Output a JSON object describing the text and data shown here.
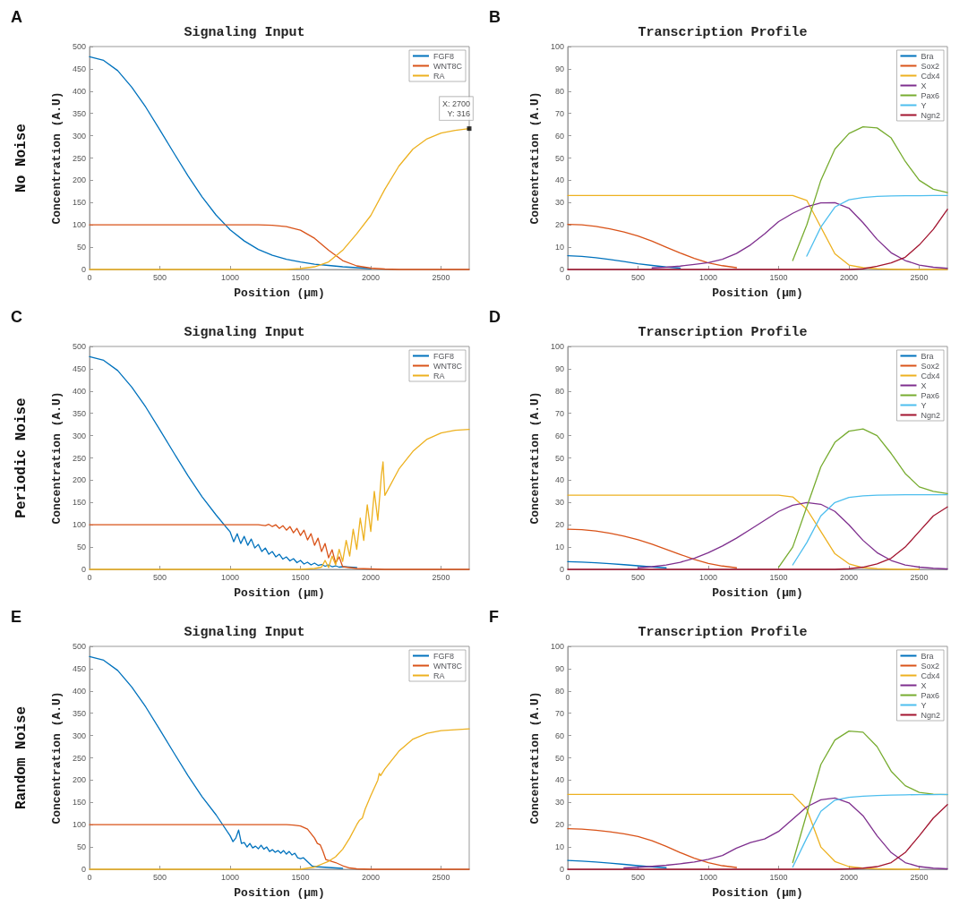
{
  "chart_data": [
    {
      "type": "line",
      "title": "Signaling Input",
      "xlabel": "Position (µm)",
      "ylabel": "Concentration (A.U)",
      "annotations": [
        "A",
        "No Noise",
        {
          "text": "X: 2700\nY: 316",
          "x": 2700,
          "y": 316
        }
      ],
      "xlim": [
        0,
        2700
      ],
      "xticks": [
        0,
        500,
        1000,
        1500,
        2000,
        2500
      ],
      "ylim": [
        0,
        500
      ],
      "yticks": [
        0,
        50,
        100,
        150,
        200,
        250,
        300,
        350,
        400,
        450,
        500
      ],
      "legend": "top right",
      "x": [
        0,
        100,
        200,
        300,
        400,
        500,
        600,
        700,
        800,
        900,
        1000,
        1100,
        1200,
        1300,
        1400,
        1500,
        1600,
        1700,
        1800,
        1900,
        2000,
        2100,
        2200,
        2300,
        2400,
        2500,
        2600,
        2700
      ],
      "series": [
        {
          "name": "FGF8",
          "color": "#0072bd",
          "values": [
            477,
            469,
            446,
            409,
            364,
            313,
            261,
            210,
            163,
            122,
            89,
            64,
            45,
            32,
            23,
            17,
            12,
            9,
            6,
            4,
            2,
            null,
            null,
            null,
            null,
            null,
            null,
            null
          ]
        },
        {
          "name": "WNT8C",
          "color": "#d95319",
          "values": [
            100,
            100,
            100,
            100,
            100,
            100,
            100,
            100,
            100,
            100,
            100,
            100,
            100,
            99,
            96,
            88,
            70,
            43,
            20,
            8,
            3,
            1,
            0,
            0,
            0,
            0,
            0,
            0
          ]
        },
        {
          "name": "RA",
          "color": "#edb120",
          "values": [
            0,
            0,
            0,
            0,
            0,
            0,
            0,
            0,
            0,
            0,
            0,
            0,
            0,
            0,
            0,
            2,
            6,
            17,
            43,
            80,
            121,
            180,
            232,
            270,
            293,
            306,
            312,
            316
          ]
        }
      ]
    },
    {
      "type": "line",
      "title": "Transcription Profile",
      "xlabel": "Position (µm)",
      "ylabel": "Concentration (A.U)",
      "annotations": [
        "B"
      ],
      "xlim": [
        0,
        2700
      ],
      "xticks": [
        0,
        500,
        1000,
        1500,
        2000,
        2500
      ],
      "ylim": [
        0,
        100
      ],
      "yticks": [
        0,
        10,
        20,
        30,
        40,
        50,
        60,
        70,
        80,
        90,
        100
      ],
      "legend": "top right",
      "x": [
        0,
        100,
        200,
        300,
        400,
        500,
        600,
        700,
        800,
        900,
        1000,
        1100,
        1200,
        1300,
        1400,
        1500,
        1600,
        1700,
        1800,
        1900,
        2000,
        2100,
        2200,
        2300,
        2400,
        2500,
        2600,
        2700
      ],
      "series": [
        {
          "name": "Bra",
          "color": "#0072bd",
          "values": [
            6.2,
            5.9,
            5.3,
            4.5,
            3.6,
            2.6,
            1.8,
            1.1,
            0.6,
            null,
            null,
            null,
            null,
            null,
            null,
            null,
            null,
            null,
            null,
            null,
            null,
            null,
            null,
            null,
            null,
            null,
            null,
            null
          ]
        },
        {
          "name": "Sox2",
          "color": "#d95319",
          "values": [
            20.2,
            20,
            19.3,
            18.2,
            16.8,
            15,
            12.7,
            10,
            7.4,
            5,
            3,
            1.7,
            0.8,
            null,
            null,
            null,
            null,
            null,
            null,
            null,
            null,
            null,
            null,
            null,
            null,
            null,
            null,
            null
          ]
        },
        {
          "name": "Cdx4",
          "color": "#edb120",
          "values": [
            33.2,
            33.2,
            33.2,
            33.2,
            33.2,
            33.2,
            33.2,
            33.2,
            33.2,
            33.2,
            33.2,
            33.2,
            33.2,
            33.2,
            33.2,
            33.2,
            33.2,
            31,
            19,
            7,
            2,
            0.8,
            0.3,
            0.1,
            0,
            0,
            0,
            0
          ]
        },
        {
          "name": "X",
          "color": "#7e2f8e",
          "values": [
            null,
            null,
            null,
            null,
            null,
            null,
            0.7,
            1,
            1.5,
            2.3,
            3.1,
            4.6,
            7.2,
            11,
            16,
            21.5,
            25.2,
            28.2,
            29.9,
            30,
            27.5,
            21,
            13.5,
            7.5,
            4,
            2,
            1,
            0.5
          ]
        },
        {
          "name": "Pax6",
          "color": "#77ac30",
          "values": [
            null,
            null,
            null,
            null,
            null,
            null,
            null,
            null,
            null,
            null,
            null,
            null,
            null,
            null,
            null,
            null,
            4,
            20,
            40,
            54,
            61,
            64,
            63.5,
            59,
            48.5,
            40,
            36,
            34.5
          ]
        },
        {
          "name": "Y",
          "color": "#4dbeee",
          "values": [
            null,
            null,
            null,
            null,
            null,
            null,
            null,
            null,
            null,
            null,
            null,
            null,
            null,
            null,
            null,
            null,
            null,
            6,
            19,
            28,
            31.3,
            32.3,
            32.8,
            33,
            33.1,
            33.1,
            33.2,
            33.2
          ]
        },
        {
          "name": "Ngn2",
          "color": "#a2142f",
          "values": [
            0,
            0,
            0,
            0,
            0,
            0,
            0,
            0,
            0,
            0,
            0,
            0,
            0,
            0,
            0,
            0,
            0,
            0,
            0,
            0,
            0,
            0.3,
            1.5,
            3,
            5.5,
            11,
            18,
            27
          ]
        }
      ]
    },
    {
      "type": "line",
      "title": "Signaling Input",
      "xlabel": "Position (µm)",
      "ylabel": "Concentration (A.U)",
      "annotations": [
        "C",
        "Periodic Noise"
      ],
      "xlim": [
        0,
        2700
      ],
      "xticks": [
        0,
        500,
        1000,
        1500,
        2000,
        2500
      ],
      "ylim": [
        0,
        500
      ],
      "yticks": [
        0,
        50,
        100,
        150,
        200,
        250,
        300,
        350,
        400,
        450,
        500
      ],
      "legend": "top right",
      "series": [
        {
          "name": "FGF8",
          "color": "#0072bd",
          "x": [
            0,
            100,
            200,
            300,
            400,
            500,
            600,
            700,
            800,
            900,
            1000,
            1025,
            1050,
            1075,
            1100,
            1125,
            1150,
            1175,
            1200,
            1225,
            1250,
            1275,
            1300,
            1325,
            1350,
            1375,
            1400,
            1425,
            1450,
            1475,
            1500,
            1525,
            1550,
            1575,
            1600,
            1625,
            1650,
            1675,
            1700,
            1725,
            1750,
            1775,
            1800,
            1850,
            1900
          ],
          "values": [
            477,
            469,
            446,
            409,
            364,
            313,
            261,
            210,
            163,
            122,
            84,
            62,
            80,
            58,
            74,
            54,
            68,
            48,
            56,
            40,
            48,
            34,
            40,
            28,
            34,
            23,
            28,
            19,
            24,
            15,
            20,
            12,
            16,
            10,
            14,
            9,
            11,
            7,
            10,
            6,
            8,
            5,
            6,
            5,
            4
          ]
        },
        {
          "name": "WNT8C",
          "color": "#d95319",
          "x": [
            0,
            100,
            200,
            300,
            400,
            500,
            600,
            700,
            800,
            900,
            1000,
            1100,
            1200,
            1250,
            1275,
            1300,
            1325,
            1350,
            1375,
            1400,
            1425,
            1450,
            1475,
            1500,
            1525,
            1550,
            1575,
            1600,
            1625,
            1650,
            1675,
            1700,
            1725,
            1750,
            1775,
            1800,
            1850,
            1900,
            2000,
            2100,
            2200,
            2300,
            2400,
            2500,
            2600,
            2700
          ],
          "values": [
            100,
            100,
            100,
            100,
            100,
            100,
            100,
            100,
            100,
            100,
            100,
            100,
            100,
            98,
            101,
            96,
            100,
            92,
            98,
            88,
            96,
            82,
            92,
            76,
            88,
            66,
            80,
            54,
            70,
            40,
            58,
            26,
            44,
            14,
            28,
            6,
            4,
            2,
            1,
            0,
            0,
            0,
            0,
            0,
            0,
            0
          ]
        },
        {
          "name": "RA",
          "color": "#edb120",
          "x": [
            0,
            100,
            200,
            300,
            400,
            500,
            600,
            700,
            800,
            900,
            1000,
            1100,
            1200,
            1300,
            1400,
            1500,
            1600,
            1650,
            1675,
            1700,
            1725,
            1750,
            1775,
            1800,
            1825,
            1850,
            1875,
            1900,
            1925,
            1950,
            1975,
            2000,
            2025,
            2050,
            2075,
            2087,
            2100,
            2200,
            2300,
            2400,
            2500,
            2600,
            2700
          ],
          "values": [
            0,
            0,
            0,
            0,
            0,
            0,
            0,
            0,
            0,
            0,
            0,
            0,
            0,
            0,
            0,
            0,
            2,
            5,
            20,
            4,
            30,
            10,
            45,
            18,
            65,
            30,
            90,
            45,
            115,
            65,
            145,
            85,
            175,
            110,
            210,
            241,
            166,
            225,
            265,
            292,
            306,
            312,
            314
          ]
        }
      ]
    },
    {
      "type": "line",
      "title": "Transcription Profile",
      "xlabel": "Position (µm)",
      "ylabel": "Concentration (A.U)",
      "annotations": [
        "D"
      ],
      "xlim": [
        0,
        2700
      ],
      "xticks": [
        0,
        500,
        1000,
        1500,
        2000,
        2500
      ],
      "ylim": [
        0,
        100
      ],
      "yticks": [
        0,
        10,
        20,
        30,
        40,
        50,
        60,
        70,
        80,
        90,
        100
      ],
      "legend": "top right",
      "x": [
        0,
        100,
        200,
        300,
        400,
        500,
        600,
        700,
        800,
        900,
        1000,
        1100,
        1200,
        1300,
        1400,
        1500,
        1600,
        1700,
        1800,
        1900,
        2000,
        2100,
        2200,
        2300,
        2400,
        2500,
        2600,
        2700
      ],
      "series": [
        {
          "name": "Bra",
          "color": "#0072bd",
          "values": [
            3.5,
            3.3,
            3,
            2.6,
            2.1,
            1.6,
            1.1,
            0.7,
            null,
            null,
            null,
            null,
            null,
            null,
            null,
            null,
            null,
            null,
            null,
            null,
            null,
            null,
            null,
            null,
            null,
            null,
            null,
            null
          ]
        },
        {
          "name": "Sox2",
          "color": "#d95319",
          "values": [
            18,
            17.8,
            17.2,
            16.2,
            14.9,
            13.3,
            11.3,
            9,
            6.7,
            4.5,
            2.7,
            1.5,
            0.7,
            null,
            null,
            null,
            null,
            null,
            null,
            null,
            null,
            null,
            null,
            null,
            null,
            null,
            null,
            null
          ]
        },
        {
          "name": "Cdx4",
          "color": "#edb120",
          "values": [
            33.3,
            33.3,
            33.3,
            33.3,
            33.3,
            33.3,
            33.3,
            33.3,
            33.3,
            33.3,
            33.3,
            33.3,
            33.3,
            33.3,
            33.3,
            33.3,
            32.5,
            27,
            17,
            7,
            2.5,
            0.8,
            0.3,
            0.1,
            0,
            0,
            null,
            null
          ]
        },
        {
          "name": "X",
          "color": "#7e2f8e",
          "values": [
            null,
            null,
            null,
            null,
            null,
            0.7,
            1.2,
            2,
            3.2,
            5,
            7.5,
            10.5,
            14,
            18,
            22,
            26,
            28.8,
            30,
            29.2,
            26,
            20,
            13,
            7.5,
            4,
            2,
            1,
            0.5,
            0.2
          ]
        },
        {
          "name": "Pax6",
          "color": "#77ac30",
          "values": [
            null,
            null,
            null,
            null,
            null,
            null,
            null,
            null,
            null,
            null,
            null,
            null,
            null,
            null,
            null,
            1,
            10,
            28,
            46,
            57,
            62,
            63,
            60,
            52,
            43,
            37,
            35,
            34
          ]
        },
        {
          "name": "Y",
          "color": "#4dbeee",
          "values": [
            null,
            null,
            null,
            null,
            null,
            null,
            null,
            null,
            null,
            null,
            null,
            null,
            null,
            null,
            null,
            null,
            2,
            12,
            24,
            30,
            32.3,
            33,
            33.3,
            33.4,
            33.5,
            33.5,
            33.5,
            33.5
          ]
        },
        {
          "name": "Ngn2",
          "color": "#a2142f",
          "values": [
            0,
            0,
            0,
            0,
            0,
            0,
            0,
            0,
            0,
            0,
            0,
            0,
            0,
            0,
            0,
            0,
            0,
            0,
            0,
            0,
            0.3,
            1,
            2.5,
            5,
            10,
            17,
            24,
            28
          ]
        }
      ]
    },
    {
      "type": "line",
      "title": "Signaling Input",
      "xlabel": "Position (µm)",
      "ylabel": "Concentration (A.U)",
      "annotations": [
        "E",
        "Random Noise"
      ],
      "xlim": [
        0,
        2700
      ],
      "xticks": [
        0,
        500,
        1000,
        1500,
        2000,
        2500
      ],
      "ylim": [
        0,
        500
      ],
      "yticks": [
        0,
        50,
        100,
        150,
        200,
        250,
        300,
        350,
        400,
        450,
        500
      ],
      "legend": "top right",
      "series": [
        {
          "name": "FGF8",
          "color": "#0072bd",
          "x": [
            0,
            100,
            200,
            300,
            400,
            500,
            600,
            700,
            800,
            900,
            1000,
            1020,
            1040,
            1060,
            1080,
            1100,
            1120,
            1140,
            1160,
            1180,
            1200,
            1220,
            1240,
            1260,
            1280,
            1300,
            1320,
            1340,
            1360,
            1380,
            1400,
            1420,
            1440,
            1460,
            1480,
            1500,
            1520,
            1540,
            1560,
            1580,
            1600,
            1700,
            1800
          ],
          "values": [
            477,
            469,
            446,
            409,
            364,
            313,
            261,
            210,
            163,
            122,
            75,
            62,
            70,
            88,
            58,
            60,
            50,
            58,
            48,
            52,
            46,
            54,
            45,
            50,
            40,
            44,
            38,
            42,
            36,
            42,
            34,
            40,
            32,
            36,
            26,
            24,
            26,
            20,
            14,
            8,
            6,
            4,
            2
          ]
        },
        {
          "name": "WNT8C",
          "color": "#d95319",
          "x": [
            0,
            100,
            200,
            300,
            400,
            500,
            600,
            700,
            800,
            900,
            1000,
            1100,
            1200,
            1300,
            1400,
            1450,
            1500,
            1550,
            1600,
            1620,
            1640,
            1660,
            1680,
            1700,
            1750,
            1800,
            1850,
            1900,
            2000,
            2100,
            2200,
            2300,
            2400,
            2500,
            2600,
            2700
          ],
          "values": [
            100,
            100,
            100,
            100,
            100,
            100,
            100,
            100,
            100,
            100,
            100,
            100,
            100,
            100,
            100,
            99,
            97,
            90,
            70,
            58,
            55,
            40,
            22,
            20,
            15,
            8,
            3,
            1,
            0,
            0,
            0,
            0,
            0,
            0,
            0,
            0
          ]
        },
        {
          "name": "RA",
          "color": "#edb120",
          "x": [
            0,
            100,
            200,
            300,
            400,
            500,
            600,
            700,
            800,
            900,
            1000,
            1100,
            1200,
            1300,
            1400,
            1500,
            1600,
            1700,
            1750,
            1800,
            1850,
            1900,
            1920,
            1940,
            1960,
            2000,
            2050,
            2060,
            2070,
            2100,
            2200,
            2300,
            2400,
            2500,
            2600,
            2700
          ],
          "values": [
            0,
            0,
            0,
            0,
            0,
            0,
            0,
            0,
            0,
            0,
            0,
            0,
            0,
            0,
            0,
            0,
            5,
            18,
            28,
            45,
            70,
            100,
            110,
            115,
            135,
            165,
            200,
            215,
            210,
            225,
            265,
            292,
            305,
            311,
            313,
            315
          ]
        }
      ]
    },
    {
      "type": "line",
      "title": "Transcription Profile",
      "xlabel": "Position (µm)",
      "ylabel": "Concentration (A.U)",
      "annotations": [
        "F"
      ],
      "xlim": [
        0,
        2700
      ],
      "xticks": [
        0,
        500,
        1000,
        1500,
        2000,
        2500
      ],
      "ylim": [
        0,
        100
      ],
      "yticks": [
        0,
        10,
        20,
        30,
        40,
        50,
        60,
        70,
        80,
        90,
        100
      ],
      "legend": "top right",
      "x": [
        0,
        100,
        200,
        300,
        400,
        500,
        600,
        700,
        800,
        900,
        1000,
        1100,
        1200,
        1300,
        1400,
        1500,
        1600,
        1700,
        1800,
        1900,
        2000,
        2100,
        2200,
        2300,
        2400,
        2500,
        2600,
        2700
      ],
      "series": [
        {
          "name": "Bra",
          "color": "#0072bd",
          "values": [
            4,
            3.7,
            3.3,
            2.8,
            2.2,
            1.6,
            1.1,
            0.7,
            null,
            null,
            null,
            null,
            null,
            null,
            null,
            null,
            null,
            null,
            null,
            null,
            null,
            null,
            null,
            null,
            null,
            null,
            null,
            null
          ]
        },
        {
          "name": "Sox2",
          "color": "#d95319",
          "values": [
            18.2,
            18,
            17.5,
            16.8,
            15.9,
            14.7,
            12.8,
            10.3,
            7.5,
            5,
            3,
            1.6,
            0.8,
            null,
            null,
            null,
            null,
            null,
            null,
            null,
            null,
            null,
            null,
            null,
            null,
            null,
            null,
            null
          ]
        },
        {
          "name": "Cdx4",
          "color": "#edb120",
          "values": [
            33.6,
            33.6,
            33.6,
            33.6,
            33.6,
            33.6,
            33.6,
            33.6,
            33.6,
            33.6,
            33.6,
            33.6,
            33.6,
            33.6,
            33.6,
            33.6,
            33.6,
            27,
            10,
            3.5,
            1.2,
            0.5,
            0.2,
            0.1,
            0,
            0,
            null,
            null
          ]
        },
        {
          "name": "X",
          "color": "#7e2f8e",
          "values": [
            null,
            null,
            null,
            null,
            0.6,
            0.9,
            1.3,
            1.8,
            2.5,
            3.3,
            4.5,
            6.2,
            9.5,
            12,
            13.6,
            17,
            22.5,
            28,
            31.2,
            32,
            29.8,
            24,
            15,
            7.5,
            3,
            1.2,
            0.5,
            0.2
          ]
        },
        {
          "name": "Pax6",
          "color": "#77ac30",
          "values": [
            null,
            null,
            null,
            null,
            null,
            null,
            null,
            null,
            null,
            null,
            null,
            null,
            null,
            null,
            null,
            null,
            3,
            25,
            47,
            58,
            62,
            61.5,
            55,
            44,
            37.5,
            34.5,
            33.7,
            33.5
          ]
        },
        {
          "name": "Y",
          "color": "#4dbeee",
          "values": [
            null,
            null,
            null,
            null,
            null,
            null,
            null,
            null,
            null,
            null,
            null,
            null,
            null,
            null,
            null,
            null,
            1,
            14,
            26,
            31,
            32.3,
            32.8,
            33.1,
            33.3,
            33.4,
            33.5,
            33.5,
            33.6
          ]
        },
        {
          "name": "Ngn2",
          "color": "#a2142f",
          "values": [
            0,
            0,
            0,
            0,
            0,
            0,
            0,
            0,
            0,
            0,
            0,
            0,
            0,
            0,
            0,
            0,
            0,
            0,
            0,
            0,
            0.2,
            0.5,
            1.2,
            3,
            7.5,
            15,
            23,
            29
          ]
        }
      ]
    }
  ]
}
